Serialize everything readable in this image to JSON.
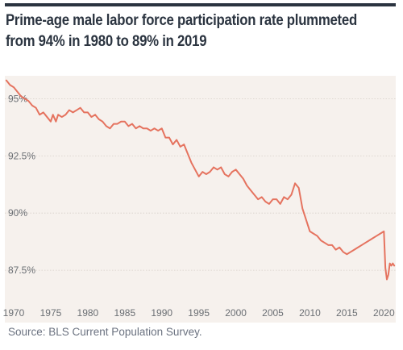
{
  "title": {
    "line1": "Prime-age male labor force participation rate plummeted",
    "line2": "from 94% in 1980 to 89% in 2019"
  },
  "source": "Source: BLS Current Population Survey.",
  "colors": {
    "line": "#e5735f",
    "plot_background": "#f6f1ed",
    "rule": "#2b3440",
    "tick_text": "#6b6f74"
  },
  "chart_data": {
    "type": "line",
    "title": "Prime-age male labor force participation rate plummeted from 94% in 1980 to 89% in 2019",
    "xlabel": "",
    "ylabel": "",
    "xlim": [
      1968.8,
      2021.6
    ],
    "ylim": [
      86.2,
      96.0
    ],
    "grid": "horizontal",
    "legend": "none",
    "x_ticks": [
      1970,
      1975,
      1980,
      1985,
      1990,
      1995,
      2000,
      2005,
      2010,
      2015,
      2020
    ],
    "x_tick_labels": [
      "1970",
      "1975",
      "1980",
      "1985",
      "1990",
      "1995",
      "2000",
      "2005",
      "2010",
      "2015",
      "2020"
    ],
    "y_ticks": [
      87.5,
      90,
      92.5,
      95
    ],
    "y_tick_labels": [
      "87.5%",
      "90%",
      "92.5%",
      "95%"
    ],
    "series": [
      {
        "x": [
          1969.0,
          1969.5,
          1970.0,
          1970.5,
          1971.0,
          1971.5,
          1972.0,
          1972.5,
          1973.0,
          1973.5,
          1974.0,
          1974.5,
          1975.0,
          1975.3,
          1975.7,
          1976.0,
          1976.5,
          1977.0,
          1977.5,
          1978.0,
          1978.5,
          1979.0,
          1979.5,
          1980.0,
          1980.5,
          1981.0,
          1981.5,
          1982.0,
          1982.5,
          1983.0,
          1983.5,
          1984.0,
          1984.5,
          1985.0,
          1985.5,
          1986.0,
          1986.5,
          1987.0,
          1987.5,
          1988.0,
          1988.5,
          1989.0,
          1989.5,
          1990.0,
          1990.5,
          1991.0,
          1991.5,
          1992.0,
          1992.5,
          1993.0,
          1993.5,
          1994.0,
          1994.5,
          1995.0,
          1995.5,
          1996.0,
          1996.5,
          1997.0,
          1997.5,
          1998.0,
          1998.5,
          1999.0,
          1999.5,
          2000.0,
          2000.5,
          2001.0,
          2001.5,
          2002.0,
          2002.5,
          2003.0,
          2003.5,
          2004.0,
          2004.5,
          2005.0,
          2005.5,
          2006.0,
          2006.5,
          2007.0,
          2007.5,
          2008.0,
          2008.5,
          2009.0,
          2009.5,
          2010.0,
          2010.5,
          2011.0,
          2011.5,
          2012.0,
          2012.5,
          2013.0,
          2013.5,
          2014.0,
          2014.5,
          2015.0,
          2015.5,
          2016.0,
          2016.5,
          2017.0,
          2017.5,
          2018.0,
          2018.5,
          2019.0,
          2019.5,
          2020.0,
          2020.2,
          2020.4,
          2020.6,
          2020.8,
          2021.0,
          2021.2,
          2021.4
        ],
        "values": [
          95.8,
          95.6,
          95.5,
          95.3,
          95.1,
          95.0,
          94.9,
          94.7,
          94.6,
          94.3,
          94.4,
          94.2,
          94.0,
          94.3,
          94.0,
          94.3,
          94.2,
          94.3,
          94.5,
          94.4,
          94.5,
          94.6,
          94.4,
          94.4,
          94.2,
          94.3,
          94.1,
          94.0,
          93.8,
          93.7,
          93.9,
          93.9,
          94.0,
          94.0,
          93.8,
          93.9,
          93.7,
          93.8,
          93.7,
          93.7,
          93.6,
          93.7,
          93.6,
          93.7,
          93.3,
          93.3,
          93.0,
          93.2,
          92.9,
          93.0,
          92.6,
          92.2,
          91.9,
          91.6,
          91.8,
          91.7,
          91.8,
          92.0,
          91.9,
          92.0,
          91.7,
          91.6,
          91.8,
          91.9,
          91.7,
          91.5,
          91.2,
          91.0,
          90.8,
          90.6,
          90.7,
          90.5,
          90.4,
          90.6,
          90.6,
          90.4,
          90.7,
          90.6,
          90.8,
          91.3,
          91.1,
          90.2,
          89.7,
          89.2,
          89.1,
          89.0,
          88.8,
          88.7,
          88.6,
          88.6,
          88.4,
          88.5,
          88.3,
          88.2,
          88.3,
          88.4,
          88.5,
          88.6,
          88.7,
          88.8,
          88.9,
          89.0,
          89.1,
          89.2,
          87.6,
          87.1,
          87.3,
          87.8,
          87.7,
          87.8,
          87.7
        ]
      }
    ]
  }
}
